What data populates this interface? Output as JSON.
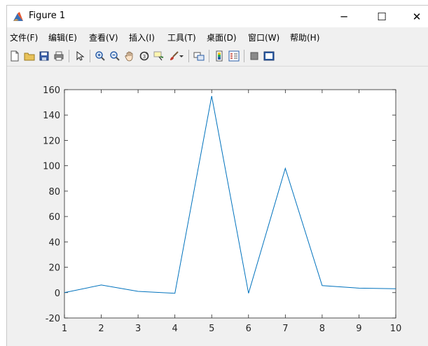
{
  "window": {
    "title": "Figure 1",
    "minimize_glyph": "─",
    "maximize_glyph": "☐",
    "close_glyph": "✕"
  },
  "menu": [
    {
      "label": "文件(F)"
    },
    {
      "label": "编辑(E)"
    },
    {
      "label": "查看(V)"
    },
    {
      "label": "插入(I)"
    },
    {
      "label": "工具(T)"
    },
    {
      "label": "桌面(D)"
    },
    {
      "label": "窗口(W)"
    },
    {
      "label": "帮助(H)"
    }
  ],
  "toolbar": [
    "new-figure-icon",
    "open-file-icon",
    "save-icon",
    "print-icon",
    "edit-plot-arrow-icon",
    "zoom-in-icon",
    "zoom-out-icon",
    "pan-hand-icon",
    "rotate-3d-icon",
    "data-cursor-icon",
    "brush-icon",
    "brush-dropdown-icon",
    "link-plot-icon",
    "insert-colorbar-icon",
    "insert-legend-icon",
    "hide-plot-tools-icon",
    "show-plot-tools-icon"
  ],
  "colors": {
    "line": "#0072BD",
    "figure_bg": "#F0F0F0",
    "axes_bg": "#FFFFFF"
  },
  "chart_data": {
    "type": "line",
    "title": "",
    "xlabel": "",
    "ylabel": "",
    "x": [
      1,
      2,
      3,
      4,
      5,
      6,
      7,
      8,
      9,
      10
    ],
    "series": [
      {
        "values": [
          0,
          6,
          1,
          -0.5,
          155,
          -0.5,
          98,
          5.5,
          3.5,
          3
        ]
      }
    ],
    "xlim": [
      1,
      10
    ],
    "ylim": [
      -20,
      160
    ],
    "xticks": [
      "1",
      "2",
      "3",
      "4",
      "5",
      "6",
      "7",
      "8",
      "9",
      "10"
    ],
    "yticks": [
      "-20",
      "0",
      "20",
      "40",
      "60",
      "80",
      "100",
      "120",
      "140",
      "160"
    ],
    "grid": false,
    "legend": "none"
  }
}
